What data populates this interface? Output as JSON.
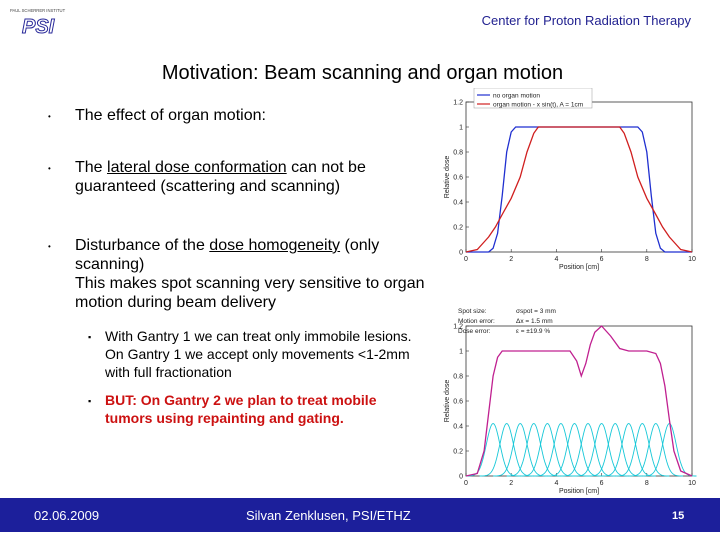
{
  "header": {
    "org": "Center for Proton Radiation Therapy"
  },
  "logo": {
    "tagline": "PAUL SCHERRER INSTITUT",
    "mark": "PSI"
  },
  "slide": {
    "title": "Motivation: Beam scanning and organ motion",
    "bullets": [
      {
        "text": "The effect of organ motion:"
      },
      {
        "pre": "The ",
        "u": "lateral dose conformation",
        "post": " can not be guaranteed (scattering and scanning)"
      },
      {
        "pre": "Disturbance of the ",
        "u": "dose homogeneity",
        "post": " (only scanning)",
        "line2": "This makes spot scanning very sensitive to organ motion during beam delivery"
      }
    ],
    "sub_bullets": [
      {
        "text": "With Gantry 1 we can treat only immobile lesions. On Gantry 1 we accept only movements <1-2mm with full fractionation"
      },
      {
        "text": "BUT: On Gantry 2 we plan to treat mobile tumors using repainting and gating."
      }
    ]
  },
  "chart_data": [
    {
      "type": "line",
      "xlabel": "Position [cm]",
      "ylabel": "Relative dose",
      "xlim": [
        0,
        10
      ],
      "ylim": [
        0,
        1.2
      ],
      "xticks": [
        0,
        2,
        4,
        6,
        8,
        10
      ],
      "yticks": [
        "0",
        "0.2",
        "0.4",
        "0.6",
        "0.8",
        "1",
        "1.2"
      ],
      "legend": [
        "no organ motion",
        "organ motion - x sin(t), A = 1cm"
      ],
      "legend_position": "top-right",
      "series": [
        {
          "name": "no organ motion",
          "color": "#1f2fd0",
          "x": [
            0,
            1.0,
            1.2,
            1.4,
            1.6,
            1.8,
            2.0,
            2.2,
            2.4,
            2.6,
            3,
            5,
            7,
            7.4,
            7.6,
            7.8,
            8.0,
            8.2,
            8.4,
            8.6,
            8.8,
            9.0,
            10
          ],
          "y": [
            0,
            0,
            0.03,
            0.15,
            0.45,
            0.8,
            0.96,
            1.0,
            1.0,
            1.0,
            1.0,
            1.0,
            1.0,
            1.0,
            1.0,
            0.96,
            0.8,
            0.45,
            0.15,
            0.03,
            0,
            0,
            0
          ]
        },
        {
          "name": "organ motion - x sin(t), A = 1cm",
          "color": "#d01f1f",
          "x": [
            0,
            0.5,
            0.8,
            1.0,
            1.3,
            1.6,
            2.0,
            2.4,
            2.7,
            3.0,
            3.2,
            5,
            6.8,
            7.0,
            7.3,
            7.6,
            8.0,
            8.4,
            8.7,
            9.0,
            9.2,
            9.5,
            10
          ],
          "y": [
            0,
            0.02,
            0.08,
            0.12,
            0.2,
            0.3,
            0.43,
            0.6,
            0.8,
            0.95,
            1.0,
            1.0,
            1.0,
            0.95,
            0.8,
            0.6,
            0.43,
            0.3,
            0.2,
            0.12,
            0.08,
            0.02,
            0
          ]
        }
      ]
    },
    {
      "type": "line",
      "xlabel": "Position [cm]",
      "ylabel": "Relative dose",
      "xlim": [
        0,
        10
      ],
      "ylim": [
        0,
        1.2
      ],
      "xticks": [
        0,
        2,
        4,
        6,
        8,
        10
      ],
      "yticks": [
        "0",
        "0.2",
        "0.4",
        "0.6",
        "0.8",
        "1",
        "1.2"
      ],
      "annotations": [
        {
          "label": "Spot size:",
          "value": "σspot = 3 mm"
        },
        {
          "label": "Motion error:",
          "value": "Δx = 1.5 mm"
        },
        {
          "label": "Dose error:",
          "value": "ε = ±19.9 %"
        }
      ],
      "spots": {
        "centers": [
          1.2,
          1.8,
          2.4,
          3.0,
          3.6,
          4.2,
          4.8,
          5.4,
          6.0,
          6.6,
          7.2,
          7.8,
          8.4,
          9.0
        ],
        "sigma": 0.3,
        "amplitude": 0.42,
        "color": "#18c8d8"
      },
      "series": [
        {
          "name": "delivered dose",
          "color": "#c02090",
          "x": [
            0,
            0.5,
            0.8,
            1.0,
            1.2,
            1.4,
            1.6,
            2.0,
            3.0,
            4.6,
            4.9,
            5.1,
            5.3,
            5.5,
            5.7,
            6.0,
            6.4,
            6.8,
            7.2,
            8.0,
            8.4,
            8.6,
            8.8,
            9.0,
            9.2,
            9.5,
            10
          ],
          "y": [
            0,
            0.02,
            0.2,
            0.5,
            0.8,
            0.95,
            1.0,
            1.0,
            1.0,
            1.0,
            0.92,
            0.8,
            0.9,
            1.05,
            1.15,
            1.2,
            1.12,
            1.02,
            1.0,
            1.0,
            0.98,
            0.9,
            0.72,
            0.45,
            0.2,
            0.04,
            0
          ]
        }
      ]
    }
  ]
}
